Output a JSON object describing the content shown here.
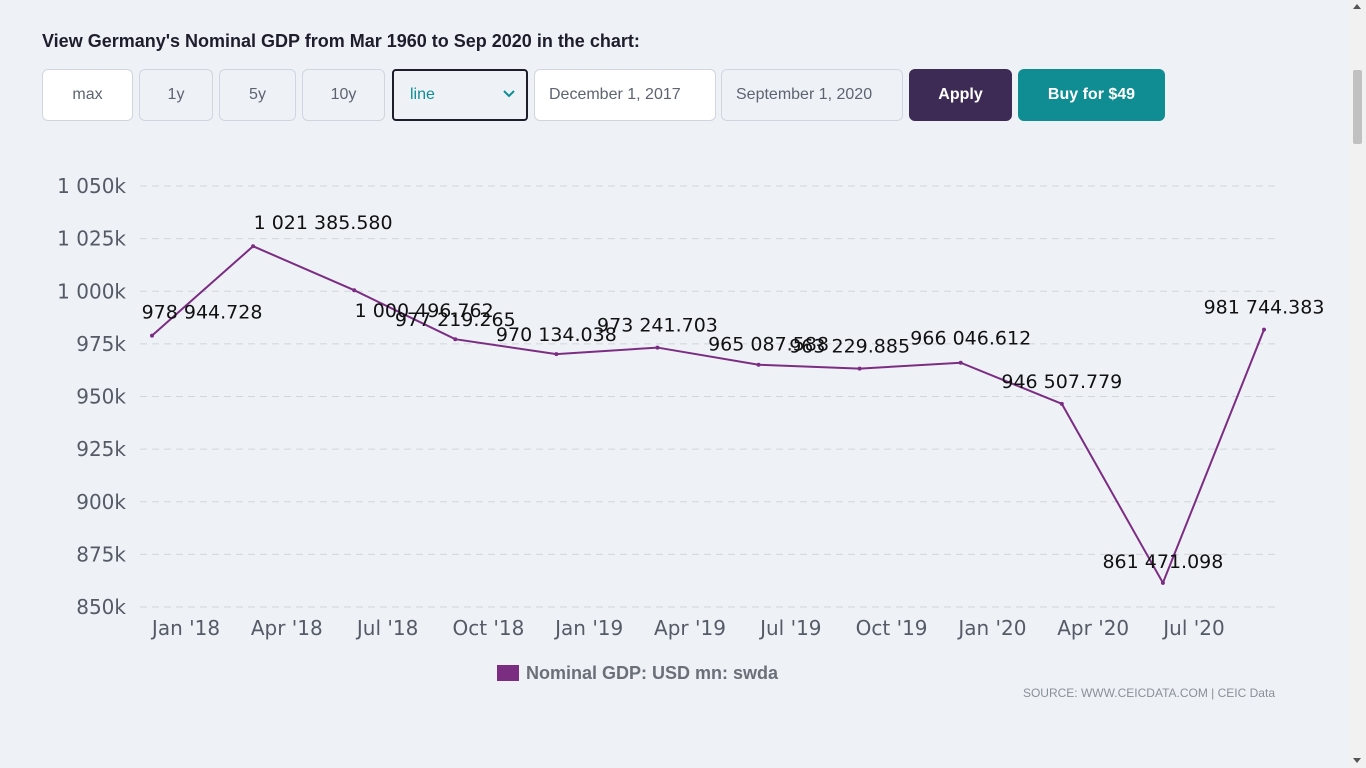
{
  "heading": "View Germany's Nominal GDP from Mar 1960 to Sep 2020 in the chart:",
  "controls": {
    "range_buttons": [
      "max",
      "1y",
      "5y",
      "10y"
    ],
    "chart_type_selected": "line",
    "start_date": "December 1, 2017",
    "end_date": "September 1, 2020",
    "apply_label": "Apply",
    "buy_label": "Buy for $49"
  },
  "colors": {
    "series": "#7b2d82",
    "apply": "#3d2a55",
    "buy": "#0f8d93"
  },
  "chart_data": {
    "type": "line",
    "x": [
      "Dec 2017",
      "Mar 2018",
      "Jun 2018",
      "Sep 2018",
      "Dec 2018",
      "Mar 2019",
      "Jun 2019",
      "Sep 2019",
      "Dec 2019",
      "Mar 2020",
      "Jun 2020",
      "Sep 2020"
    ],
    "series": [
      {
        "name": "Nominal GDP: USD mn: swda",
        "values": [
          978944.728,
          1021385.58,
          1000496.762,
          977219.265,
          970134.038,
          973241.703,
          965087.588,
          963229.885,
          966046.612,
          946507.779,
          861471.098,
          981744.383
        ],
        "labels": [
          "978 944.728",
          "1 021 385.580",
          "1 000 496.762",
          "977 219.265",
          "970 134.038",
          "973 241.703",
          "965 087.588",
          "963 229.885",
          "966 046.612",
          "946 507.779",
          "861 471.098",
          "981 744.383"
        ]
      }
    ],
    "x_ticks": [
      "Jan '18",
      "Apr '18",
      "Jul '18",
      "Oct '18",
      "Jan '19",
      "Apr '19",
      "Jul '19",
      "Oct '19",
      "Jan '20",
      "Apr '20",
      "Jul '20"
    ],
    "y_ticks": [
      "850k",
      "875k",
      "900k",
      "925k",
      "950k",
      "975k",
      "1 000k",
      "1 025k",
      "1 050k"
    ],
    "ylim": [
      850000,
      1050000
    ],
    "grid": true,
    "legend": "bottom-center",
    "source": "SOURCE: WWW.CEICDATA.COM | CEIC Data"
  }
}
